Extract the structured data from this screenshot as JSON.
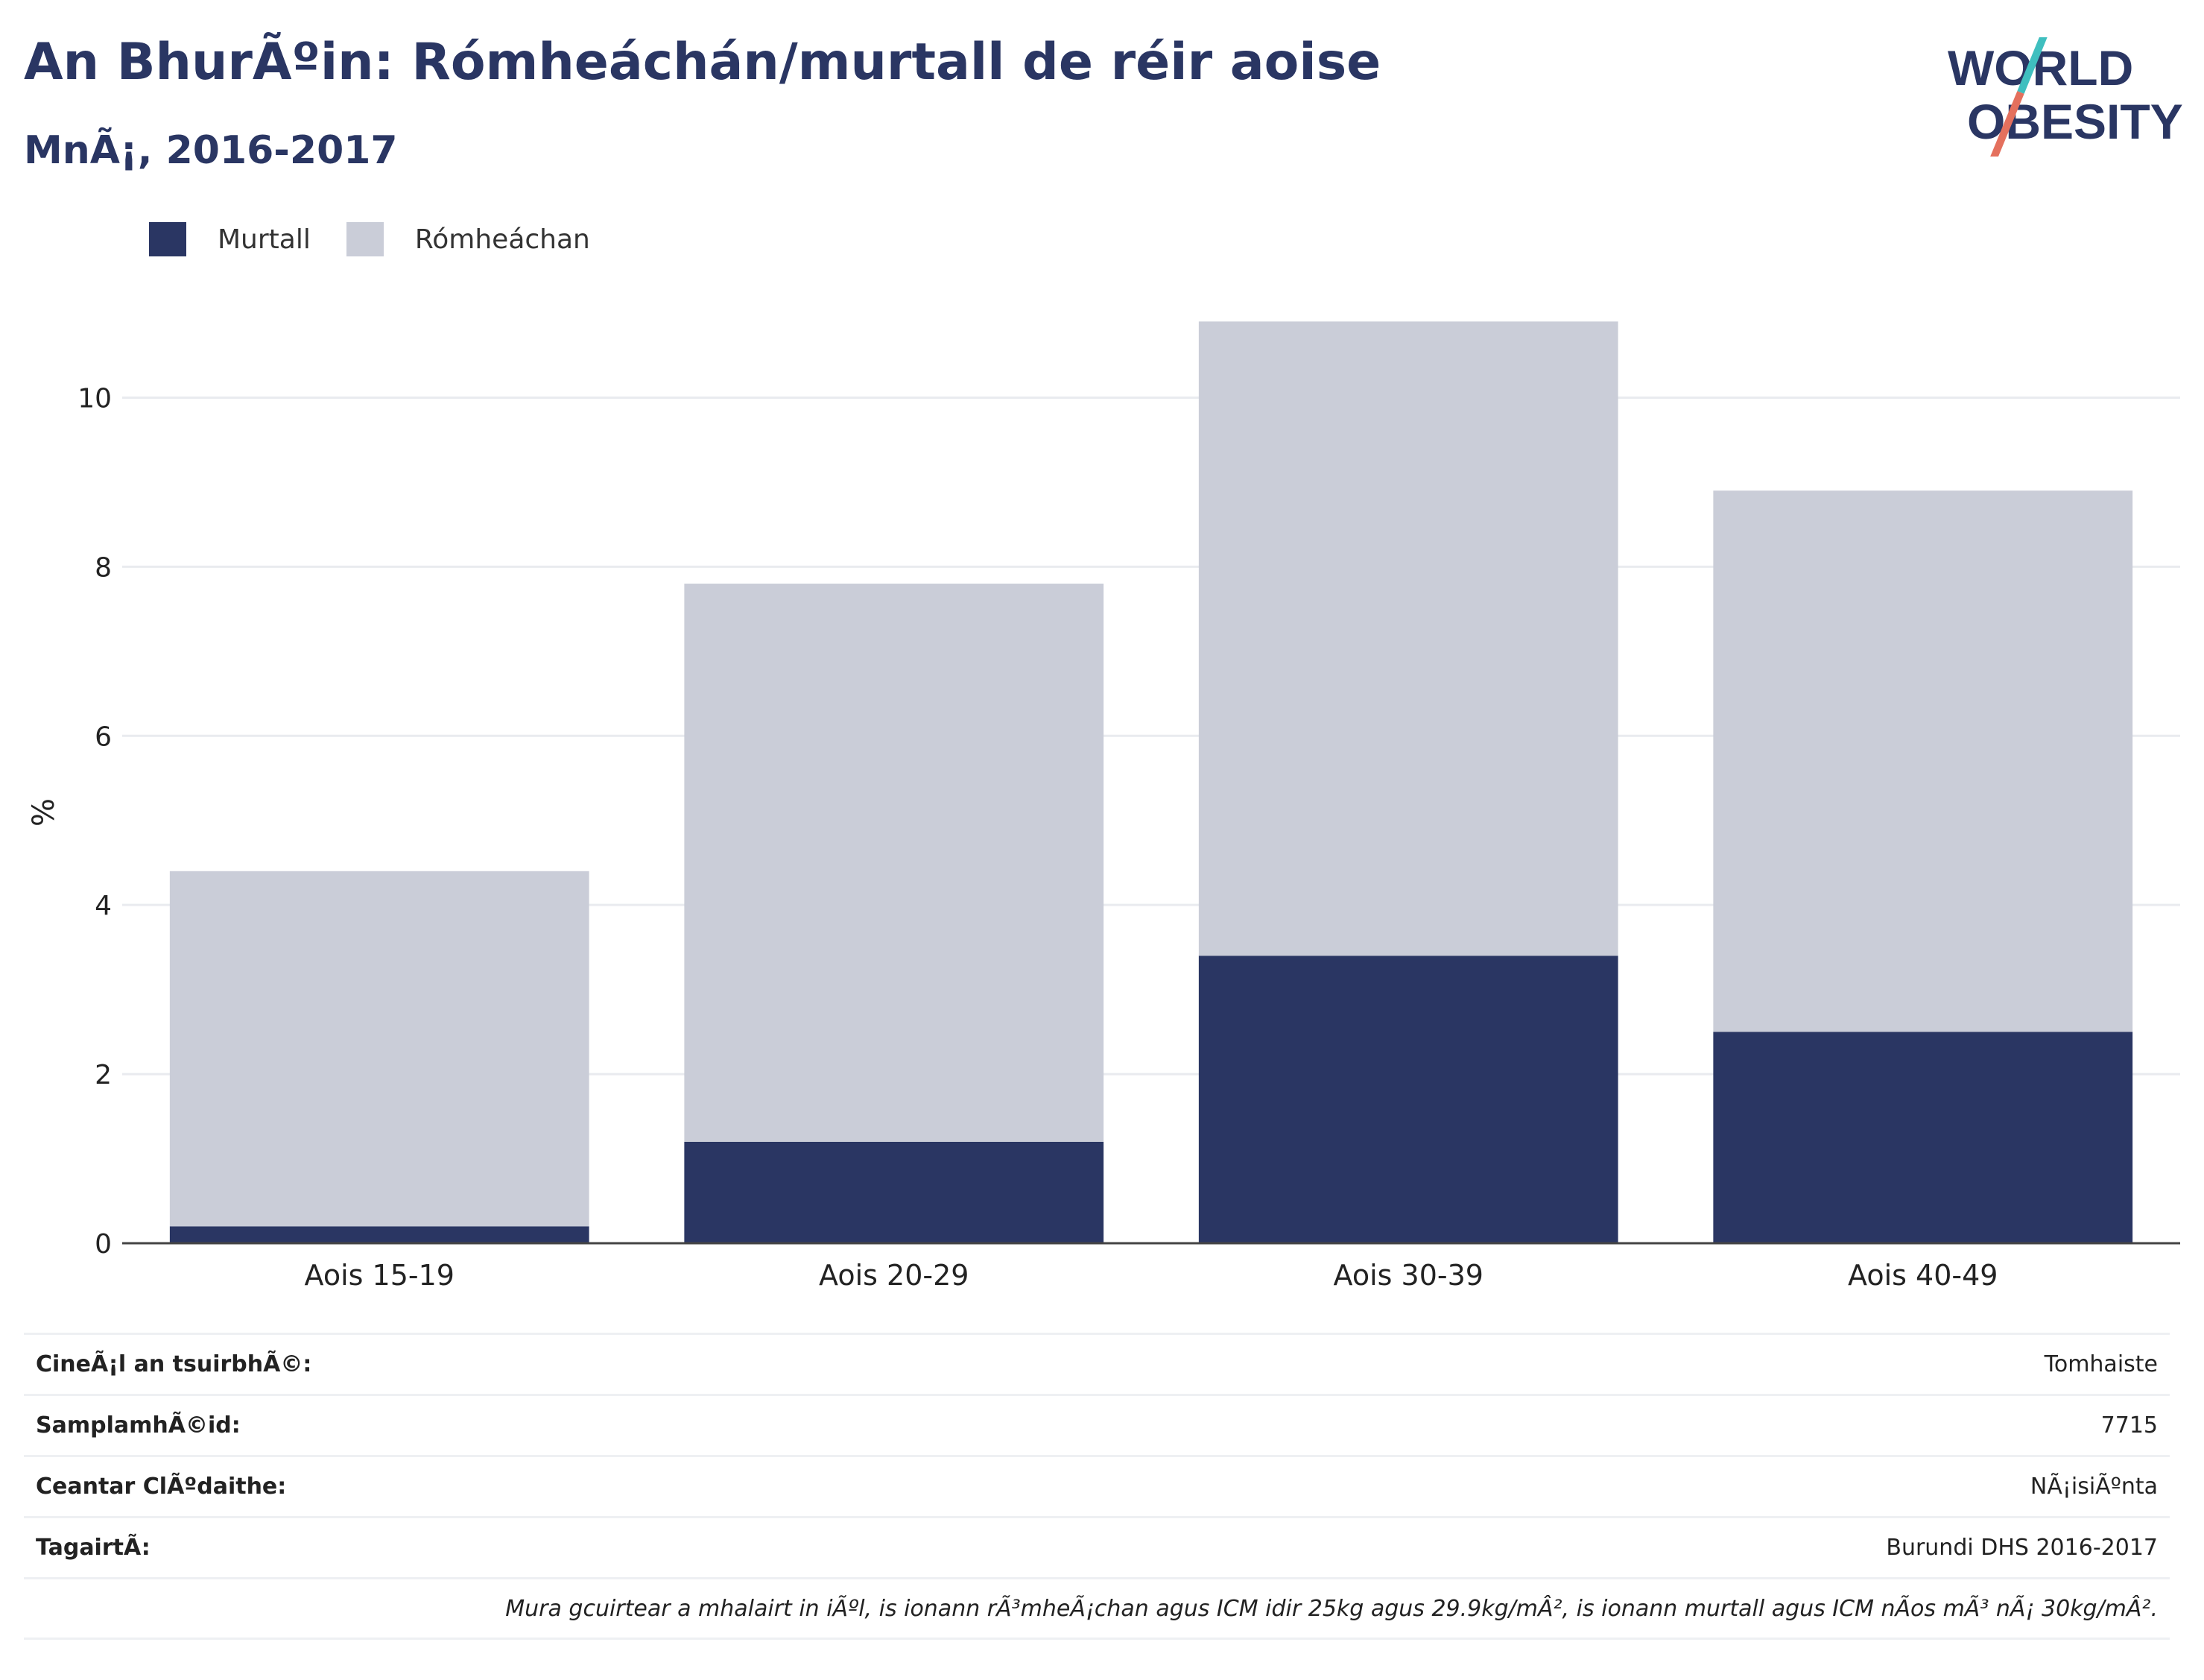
{
  "header": {
    "title": "An BhurÃºin: Rómheáchán/murtall de réir aoise",
    "subtitle": "MnÃ¡, 2016-2017"
  },
  "logo": {
    "line1": "WORLD",
    "line2": "OBESITY",
    "colors": {
      "text": "#2a3663",
      "slash_top": "#3fbfbf",
      "slash_bottom": "#e4705d"
    }
  },
  "legend": [
    {
      "label": "Murtall",
      "color": "#2a3663"
    },
    {
      "label": "Rómheáchan",
      "color": "#cacdd8"
    }
  ],
  "chart_data": {
    "type": "bar",
    "stacked": true,
    "categories": [
      "Aois 15-19",
      "Aois 20-29",
      "Aois 30-39",
      "Aois 40-49"
    ],
    "series": [
      {
        "name": "Murtall",
        "color": "#2a3663",
        "values": [
          0.2,
          1.2,
          3.4,
          2.5
        ]
      },
      {
        "name": "Rómheáchan",
        "color": "#cacdd8",
        "values": [
          4.2,
          6.6,
          7.5,
          6.4
        ]
      }
    ],
    "ylabel": "%",
    "ylim": [
      0,
      11
    ],
    "yticks": [
      0,
      2,
      4,
      6,
      8,
      10
    ],
    "grid": true,
    "legend_position": "top-left"
  },
  "info": {
    "rows": [
      {
        "key": "CineÃ¡l an tsuirbhÃ©:",
        "value": "Tomhaiste"
      },
      {
        "key": "SamplamhÃ©id:",
        "value": "7715"
      },
      {
        "key": "Ceantar ClÃºdaithe:",
        "value": "NÃ¡isiÃºnta"
      },
      {
        "key": "TagairtÃ:",
        "value": "Burundi DHS 2016-2017"
      }
    ],
    "note": "Mura gcuirtear a mhalairt in iÃºl, is ionann rÃ³mheÃ¡chan agus ICM idir 25kg agus 29.9kg/mÂ², is ionann murtall agus ICM nÃos mÃ³ nÃ¡ 30kg/mÂ²."
  }
}
